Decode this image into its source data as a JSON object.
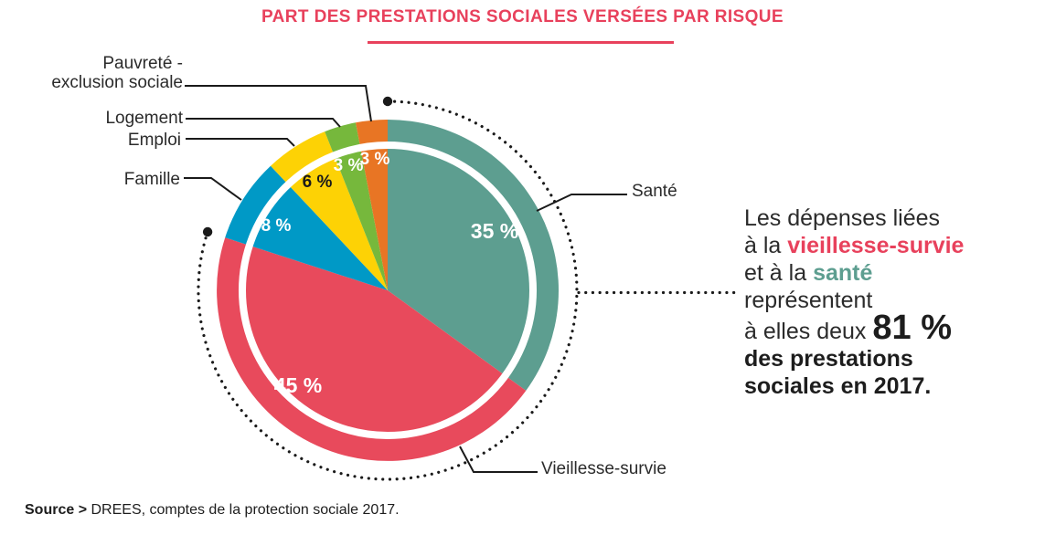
{
  "title": {
    "text": "PART DES PRESTATIONS SOCIALES VERSÉES PAR RISQUE"
  },
  "chart_data": {
    "type": "pie",
    "title": "PART DES PRESTATIONS SOCIALES VERSÉES PAR RISQUE",
    "unit": "%",
    "start_angle_deg": 0,
    "clockwise": true,
    "legend_position": "outside-labels",
    "slices": [
      {
        "id": "sante",
        "label": "Santé",
        "value": 35,
        "display": "35 %",
        "color": "#5d9e90",
        "value_label_color": "#ffffff"
      },
      {
        "id": "vieillesse",
        "label": "Vieillesse-survie",
        "value": 45,
        "display": "45 %",
        "color": "#e84a5c",
        "value_label_color": "#ffffff"
      },
      {
        "id": "famille",
        "label": "Famille",
        "value": 8,
        "display": "8 %",
        "color": "#0099c6",
        "value_label_color": "#ffffff"
      },
      {
        "id": "emploi",
        "label": "Emploi",
        "value": 6,
        "display": "6 %",
        "color": "#fdd205",
        "value_label_color": "#1a1a1a"
      },
      {
        "id": "logement",
        "label": "Logement",
        "value": 3,
        "display": "3 %",
        "color": "#76b83c",
        "value_label_color": "#ffffff"
      },
      {
        "id": "pauvrete",
        "label": "Pauvreté - exclusion sociale",
        "value": 3,
        "display": "3 %",
        "color": "#e87524",
        "value_label_color": "#ffffff"
      }
    ],
    "highlight_group": {
      "slices": [
        "Vieillesse-survie",
        "Santé"
      ],
      "combined_value": 81,
      "style": "dotted-arc-around-group"
    }
  },
  "labels": {
    "pauvrete": [
      "Pauvreté -",
      "exclusion sociale"
    ],
    "logement": "Logement",
    "emploi": "Emploi",
    "famille": "Famille",
    "sante": "Santé",
    "vieillesse": "Vieillesse-survie"
  },
  "annotation": {
    "line1": "Les dépenses liées",
    "line2_prefix": "à la ",
    "line2_highlight": "vieillesse-survie",
    "line3_prefix": "et à la ",
    "line3_highlight": "santé",
    "line4": "représentent",
    "line5_prefix": "à elles deux ",
    "line5_big": "81 %",
    "line6": "des prestations",
    "line7": "sociales en 2017."
  },
  "source": {
    "label": "Source > ",
    "text": "DREES, comptes de la protection sociale 2017."
  },
  "colors": {
    "accent_red": "#e8415c",
    "highlight_teal": "#5d9e90",
    "text_dark": "#2b2b2b",
    "line_black": "#1a1a1a"
  }
}
